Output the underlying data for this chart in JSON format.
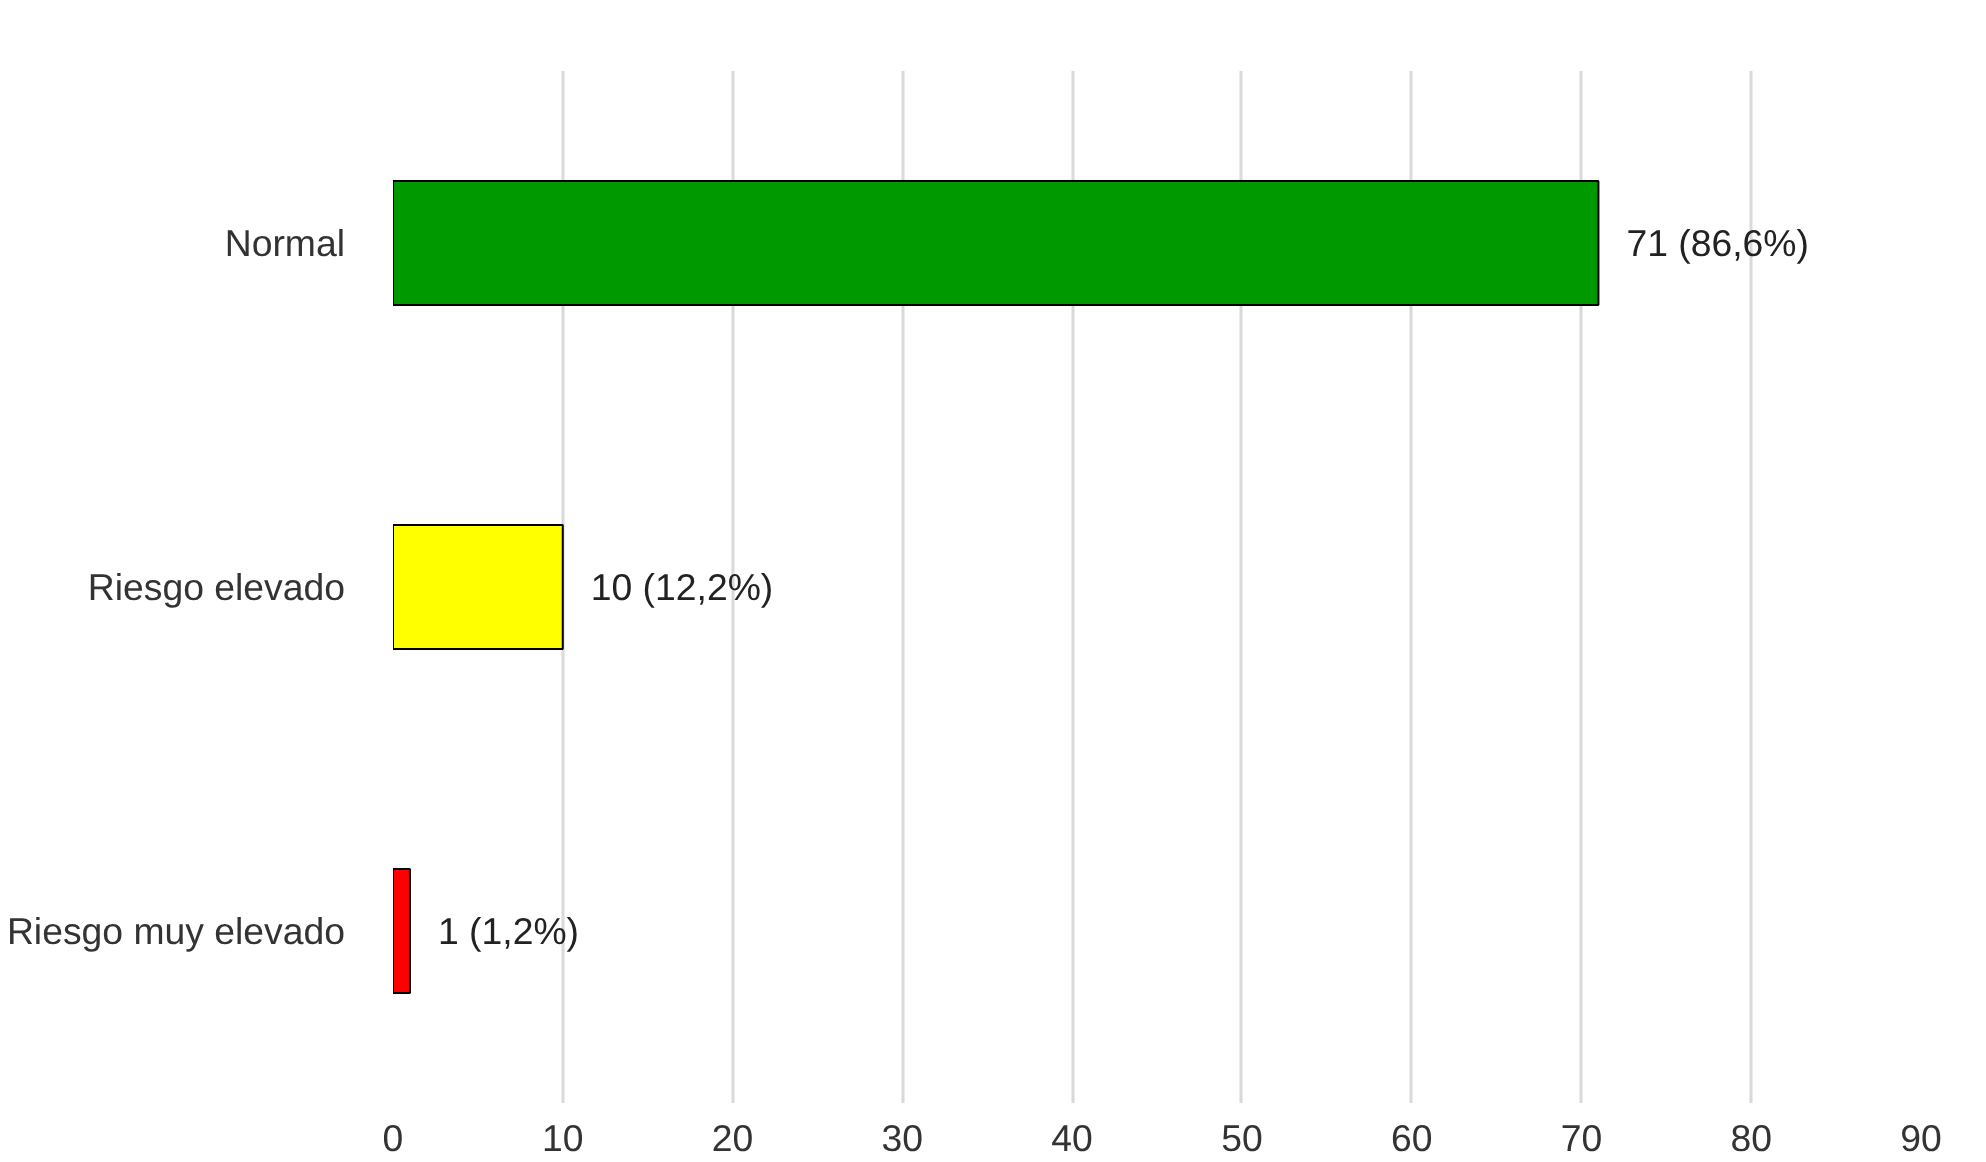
{
  "chart_data": {
    "type": "bar",
    "orientation": "horizontal",
    "categories": [
      "Normal",
      "Riesgo elevado",
      "Riesgo muy elevado"
    ],
    "values": [
      71,
      10,
      1
    ],
    "colors": [
      "#009900",
      "#ffff00",
      "#ff0000"
    ],
    "value_labels": [
      "71 (86,6%)",
      "10 (12,2%)",
      "1 (1,2%)"
    ],
    "xlim": [
      0,
      90
    ],
    "xticks": [
      0,
      10,
      20,
      30,
      40,
      50,
      60,
      70,
      80,
      90
    ],
    "grid": "x"
  }
}
